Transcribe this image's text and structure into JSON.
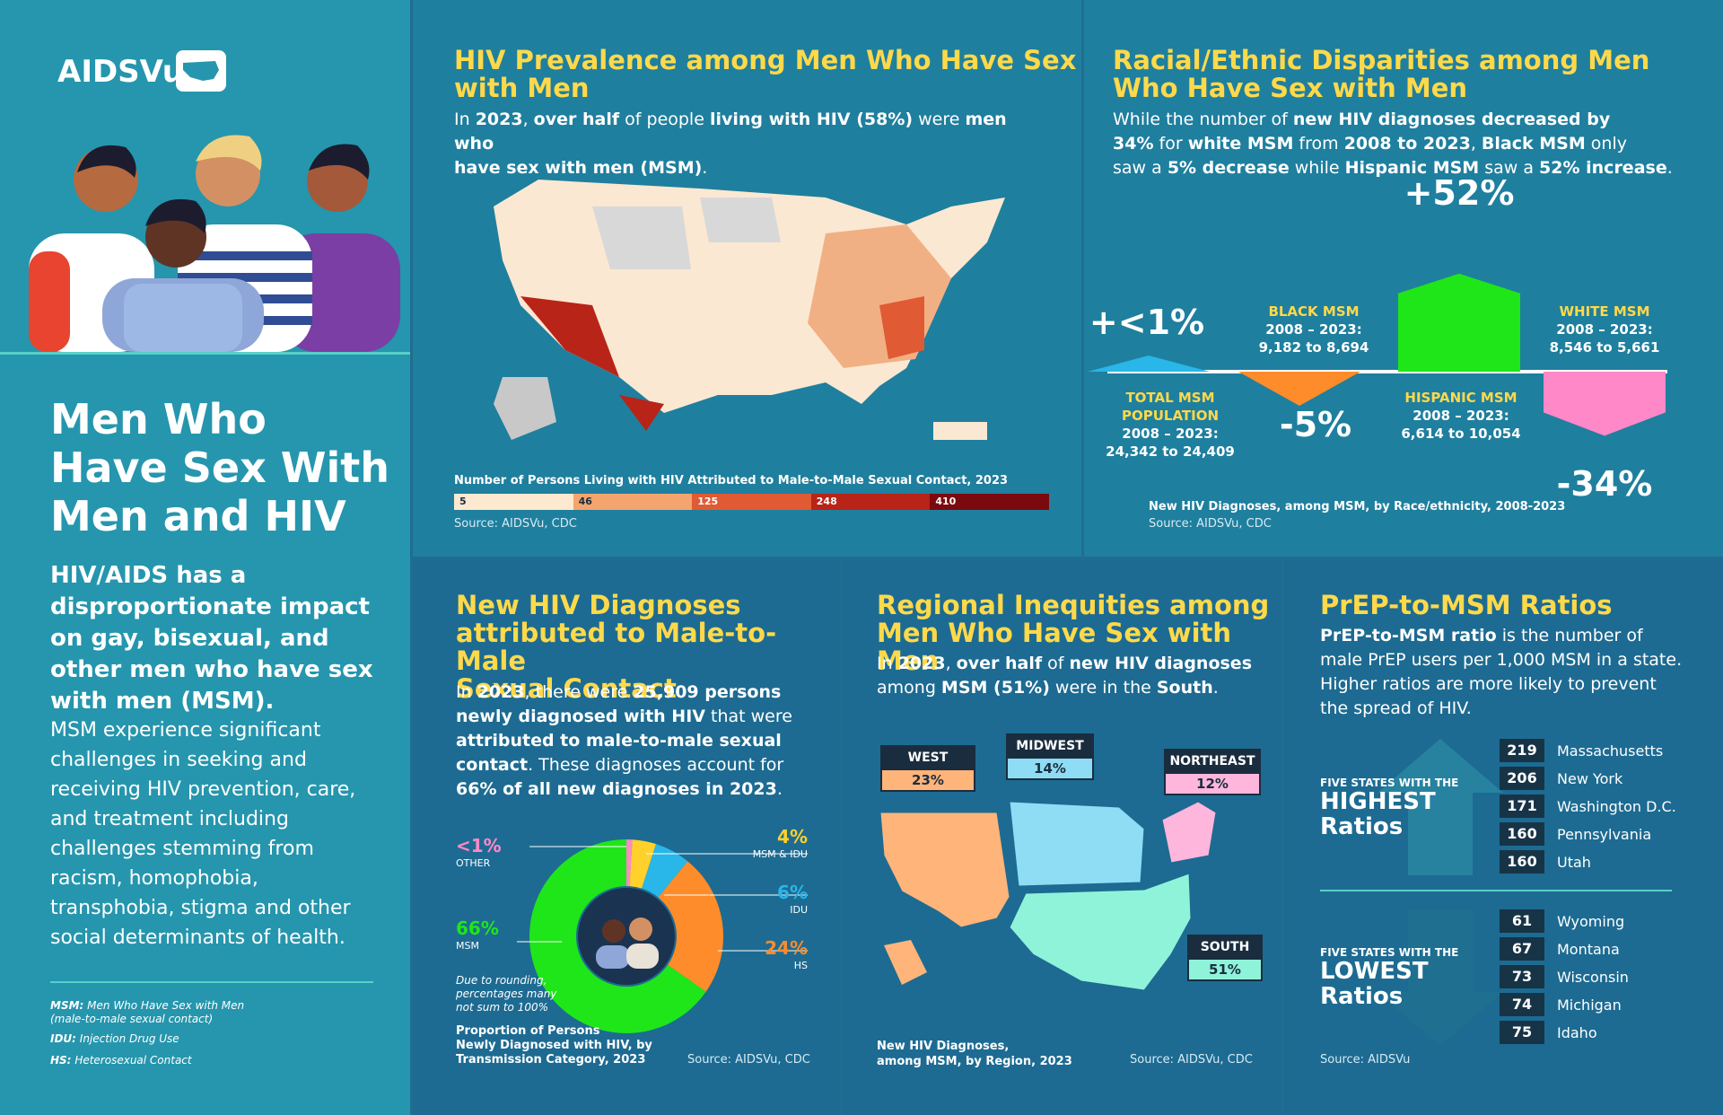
{
  "left": {
    "logo": "AIDSVu",
    "title_lines": [
      "Men Who",
      "Have Sex With",
      "Men and HIV"
    ],
    "impact": "HIV/AIDS has a disproportionate impact on gay, bisexual, and other men who have sex with men (MSM).",
    "body": "MSM experience significant challenges in seeking and receiving HIV prevention, care, and treatment including challenges stemming from racism, homophobia, transphobia, stigma and other social determinants of health.",
    "glossary": [
      {
        "term": "MSM:",
        "def": "Men Who Have Sex with Men",
        "def2": "(male-to-male sexual contact)"
      },
      {
        "term": "IDU:",
        "def": "Injection Drug Use",
        "def2": ""
      },
      {
        "term": "HS:",
        "def": "Heterosexual Contact",
        "def2": ""
      }
    ]
  },
  "prevalence": {
    "title_lines": [
      "HIV Prevalence among Men Who Have Sex",
      "with Men"
    ],
    "text_parts": [
      "In ",
      "2023",
      ", ",
      "over half",
      " of people ",
      "living with HIV (58%)",
      " were ",
      "men who",
      "have sex with men (MSM)",
      "."
    ],
    "legend_title": "Number of Persons Living with HIV Attributed to Male-to-Male Sexual Contact, 2023",
    "legend": [
      "5",
      "46",
      "125",
      "248",
      "410"
    ],
    "legend_colors": [
      "#fde9cf",
      "#f4a46e",
      "#e05a33",
      "#b82418",
      "#7a0a0e"
    ],
    "source": "Source: AIDSVu, CDC"
  },
  "disparities": {
    "title_lines": [
      "Racial/Ethnic Disparities among Men",
      "Who Have Sex with Men"
    ],
    "text_line1": [
      "While the number of ",
      "new HIV diagnoses decreased by"
    ],
    "text_line2": [
      "34%",
      " for ",
      "white MSM",
      " from ",
      "2008 to 2023",
      ", ",
      "Black MSM",
      " only"
    ],
    "text_line3": [
      "saw a ",
      "5% decrease",
      " while ",
      "Hispanic MSM",
      " saw a ",
      "52% increase",
      "."
    ],
    "chart_data": {
      "type": "bar",
      "title": "New HIV Diagnoses, among MSM, by Race/ethnicity, 2008-2023",
      "categories": [
        "TOTAL MSM POPULATION",
        "BLACK MSM",
        "HISPANIC MSM",
        "WHITE MSM"
      ],
      "values_pct_change": [
        1,
        -5,
        52,
        -34
      ],
      "value_labels": [
        "+<1%",
        "-5%",
        "+52%",
        "-34%"
      ],
      "ranges": [
        "2008 – 2023:",
        "2008 – 2023:",
        "2008 – 2023:",
        "2008 – 2023:"
      ],
      "counts": [
        "24,342 to 24,409",
        "9,182 to 8,694",
        "6,614 to 10,054",
        "8,546 to 5,661"
      ],
      "colors": [
        "#29b6e8",
        "#ff8c2a",
        "#1fe619",
        "#ff88c8"
      ],
      "labels_line1": [
        "TOTAL MSM",
        "BLACK MSM",
        "HISPANIC MSM",
        "WHITE MSM"
      ],
      "labels_line2": [
        "POPULATION",
        "",
        "",
        ""
      ]
    },
    "source": "Source: AIDSVu, CDC"
  },
  "new_diagnoses": {
    "title_lines": [
      "New HIV Diagnoses",
      "attributed to Male-to-Male",
      "Sexual Contact"
    ],
    "text_parts": [
      [
        "In ",
        "2023",
        ", there were ",
        "25,909 persons"
      ],
      [
        "newly diagnosed with HIV",
        " that were"
      ],
      [
        "attributed to male-to-male sexual"
      ],
      [
        "contact",
        ". These diagnoses account for"
      ],
      [
        "66% of all new diagnoses in 2023",
        "."
      ]
    ],
    "chart_data": {
      "type": "pie",
      "title": "Proportion of Persons Newly Diagnosed with HIV, by Transmission Category, 2023",
      "categories": [
        "MSM",
        "HS",
        "IDU",
        "MSM & IDU",
        "OTHER"
      ],
      "values": [
        66,
        24,
        6,
        4,
        1
      ],
      "value_labels": [
        "66%",
        "24%",
        "6%",
        "4%",
        "<1%"
      ],
      "colors": [
        "#1fe619",
        "#ff8c2a",
        "#29b6e8",
        "#ffd12a",
        "#ff88c8"
      ]
    },
    "note_lines": [
      "Due to rounding,",
      "percentages many",
      "not sum to 100%"
    ],
    "caption_lines": [
      "Proportion of Persons",
      "Newly Diagnosed with HIV, by",
      "Transmission Category, 2023"
    ],
    "source": "Source: AIDSVu, CDC"
  },
  "regional": {
    "title_lines": [
      "Regional Inequities among",
      "Men Who Have Sex with Men"
    ],
    "text_line1": [
      "In ",
      "2023",
      ", ",
      "over half",
      " of ",
      "new HIV diagnoses"
    ],
    "text_line2": [
      "among ",
      "MSM (51%)",
      " were in the ",
      "South",
      "."
    ],
    "chart_data": {
      "type": "table",
      "title": "New HIV Diagnoses, among MSM, by Region, 2023",
      "categories": [
        "WEST",
        "MIDWEST",
        "NORTHEAST",
        "SOUTH"
      ],
      "value_labels": [
        "23%",
        "14%",
        "12%",
        "51%"
      ],
      "values": [
        23,
        14,
        12,
        51
      ],
      "colors": [
        "#ffb47a",
        "#8fdcf5",
        "#ffb6dc",
        "#8ff3da"
      ]
    },
    "caption_lines": [
      "New HIV Diagnoses,",
      "among MSM, by Region, 2023"
    ],
    "source": "Source: AIDSVu, CDC"
  },
  "prep": {
    "title": "PrEP-to-MSM Ratios",
    "text_lines": [
      [
        "PrEP-to-MSM ratio",
        " is the number of"
      ],
      [
        "male PrEP users per 1,000 MSM in a state."
      ],
      [
        "Higher ratios are more likely to prevent"
      ],
      [
        "the spread of HIV."
      ]
    ],
    "highest_small": "FIVE STATES WITH THE",
    "highest_big": [
      "HIGHEST",
      "Ratios"
    ],
    "lowest_small": "FIVE STATES WITH THE",
    "lowest_big": [
      "LOWEST",
      "Ratios"
    ],
    "highest": [
      {
        "value": "219",
        "state": "Massachusetts"
      },
      {
        "value": "206",
        "state": "New York"
      },
      {
        "value": "171",
        "state": "Washington D.C."
      },
      {
        "value": "160",
        "state": "Pennsylvania"
      },
      {
        "value": "160",
        "state": "Utah"
      }
    ],
    "lowest": [
      {
        "value": "61",
        "state": "Wyoming"
      },
      {
        "value": "67",
        "state": "Montana"
      },
      {
        "value": "73",
        "state": "Wisconsin"
      },
      {
        "value": "74",
        "state": "Michigan"
      },
      {
        "value": "75",
        "state": "Idaho"
      }
    ],
    "source": "Source: AIDSVu"
  },
  "colors": {
    "accent_yellow": "#ffd94a",
    "teal_line": "#58d0c8",
    "dark_navy": "#173447"
  }
}
